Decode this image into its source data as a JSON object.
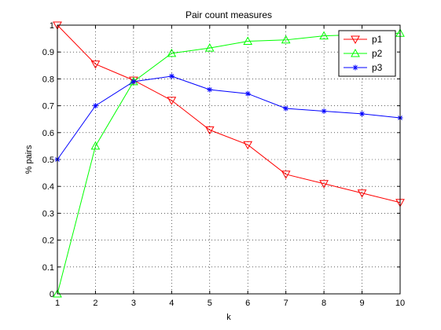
{
  "chart_data": {
    "type": "line",
    "title": "Pair count measures",
    "xlabel": "k",
    "ylabel": "% pairs",
    "x": [
      1,
      2,
      3,
      4,
      5,
      6,
      7,
      8,
      9,
      10
    ],
    "xlim": [
      1,
      10
    ],
    "ylim": [
      0,
      1
    ],
    "xticks": [
      "1",
      "2",
      "3",
      "4",
      "5",
      "6",
      "7",
      "8",
      "9",
      "10"
    ],
    "yticks": [
      "0",
      "0.1",
      "0.2",
      "0.3",
      "0.4",
      "0.5",
      "0.6",
      "0.7",
      "0.8",
      "0.9",
      "1"
    ],
    "grid": true,
    "legend_position": "top-right",
    "series": [
      {
        "name": "p1",
        "color": "#ff0000",
        "marker": "triangle-down",
        "values": [
          1.0,
          0.855,
          0.795,
          0.72,
          0.61,
          0.555,
          0.445,
          0.41,
          0.375,
          0.34
        ]
      },
      {
        "name": "p2",
        "color": "#00ff00",
        "marker": "triangle-up",
        "values": [
          0.0,
          0.55,
          0.79,
          0.895,
          0.915,
          0.94,
          0.945,
          0.96,
          0.965,
          0.97
        ]
      },
      {
        "name": "p3",
        "color": "#0000ff",
        "marker": "asterisk",
        "values": [
          0.5,
          0.7,
          0.79,
          0.81,
          0.76,
          0.745,
          0.69,
          0.68,
          0.67,
          0.655
        ]
      }
    ]
  }
}
